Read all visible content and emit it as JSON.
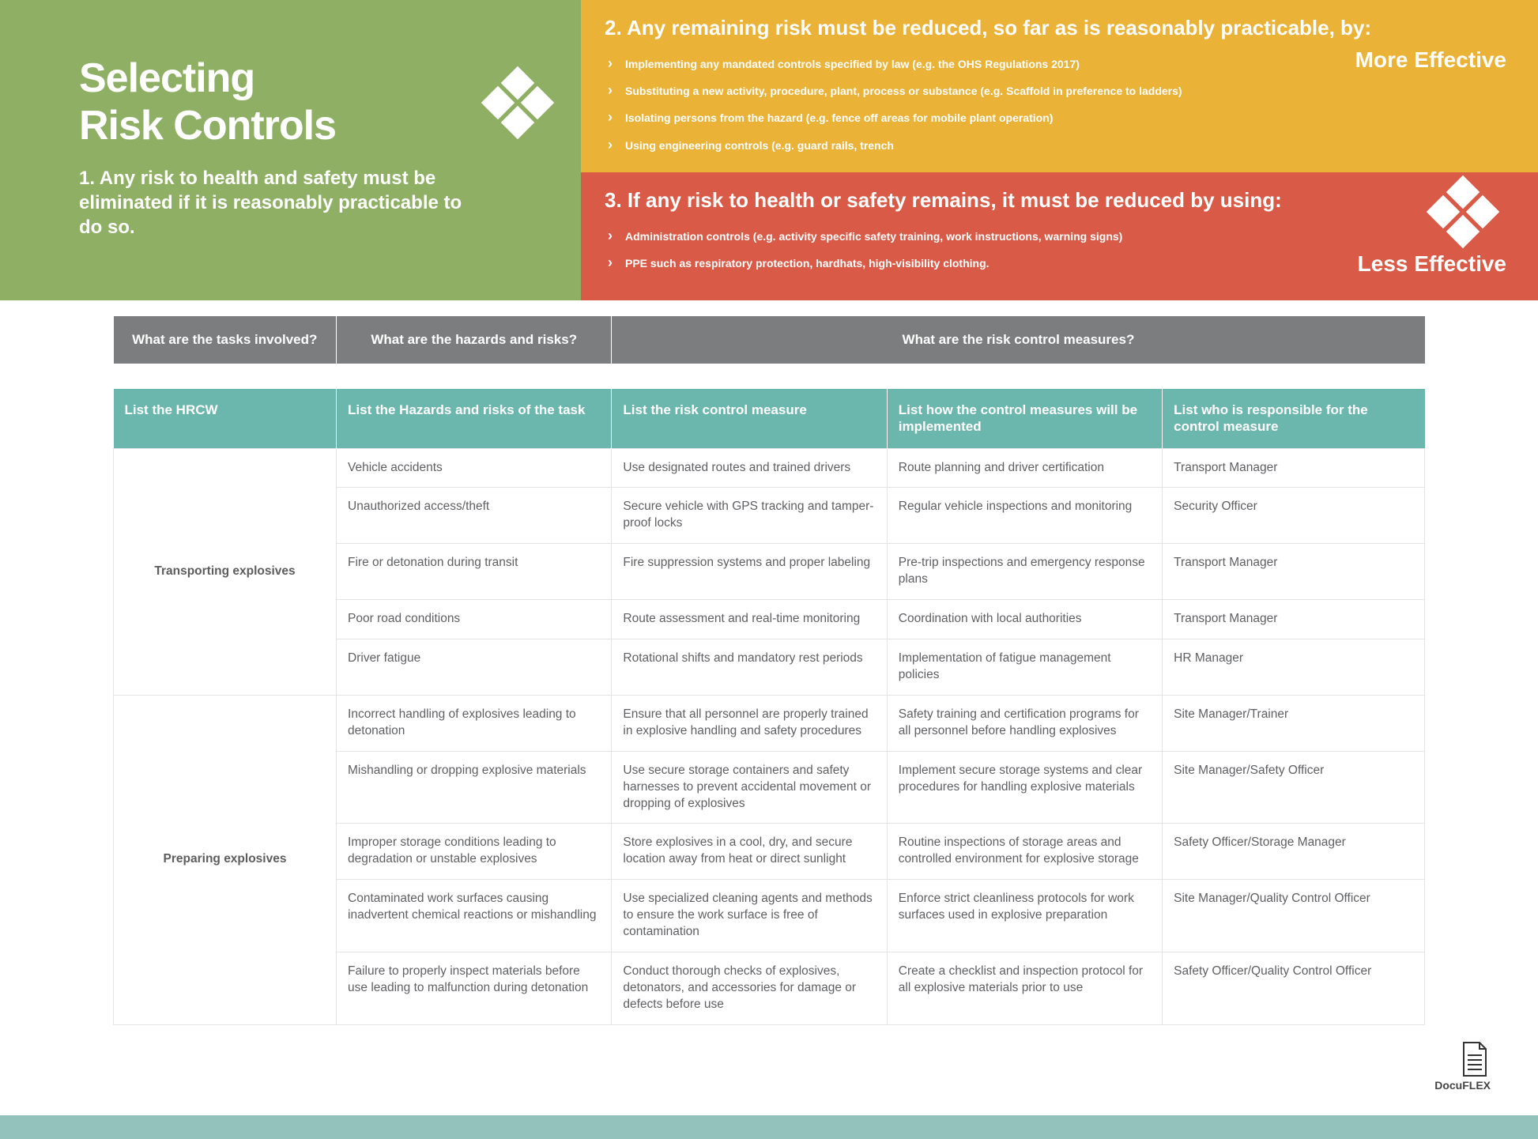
{
  "hero": {
    "title_line1": "Selecting",
    "title_line2": "Risk Controls",
    "point1": "1. Any risk to health and safety must be eliminated if it is reasonably practicable to do so.",
    "band2": {
      "title": "2. Any remaining risk must be reduced, so far as is reasonably practicable, by:",
      "items": [
        "Implementing any mandated controls specified by law (e.g. the OHS Regulations 2017)",
        "Substituting a new activity, procedure, plant, process or substance (e.g. Scaffold in preference to ladders)",
        "Isolating persons from the hazard (e.g. fence off areas for mobile plant operation)",
        "Using engineering controls (e.g. guard rails, trench"
      ],
      "label": "More Effective"
    },
    "band3": {
      "title": "3. If any risk to health or safety remains, it must be reduced by using:",
      "items": [
        "Administration controls (e.g. activity specific safety training, work instructions, warning signs)",
        "PPE such as respiratory protection, hardhats, high-visibility clothing."
      ],
      "label": "Less Effective"
    }
  },
  "colors": {
    "green": "#8fb064",
    "orange": "#eab237",
    "red": "#d95b47",
    "teal": "#6bb7ad",
    "grey": "#7c7d7e",
    "footer_teal": "#93c2bc",
    "body_text": "#5f6063",
    "border": "#e3e4e5"
  },
  "top_headers": {
    "c1": "What are the tasks involved?",
    "c2": "What are the hazards and risks?",
    "c3": "What are the risk control measures?"
  },
  "sub_headers": {
    "h1": "List the HRCW",
    "h2": "List the Hazards and risks of the task",
    "h3": "List the risk control measure",
    "h4": "List how the control measures will be implemented",
    "h5": "List who is responsible for the control measure"
  },
  "col_widths": {
    "c1": "17%",
    "c2": "21%",
    "c3": "21%",
    "c4": "21%",
    "c5": "20%"
  },
  "groups": [
    {
      "hrcw": "Transporting explosives",
      "rows": [
        {
          "hazard": "Vehicle accidents",
          "control": "Use designated routes and trained drivers",
          "impl": "Route planning and driver certification",
          "resp": "Transport Manager"
        },
        {
          "hazard": "Unauthorized access/theft",
          "control": "Secure vehicle with GPS tracking and tamper-proof locks",
          "impl": "Regular vehicle inspections and monitoring",
          "resp": "Security Officer"
        },
        {
          "hazard": "Fire or detonation during transit",
          "control": "Fire suppression systems and proper labeling",
          "impl": "Pre-trip inspections and emergency response plans",
          "resp": "Transport Manager"
        },
        {
          "hazard": "Poor road conditions",
          "control": "Route assessment and real-time monitoring",
          "impl": "Coordination with local authorities",
          "resp": "Transport Manager"
        },
        {
          "hazard": "Driver fatigue",
          "control": "Rotational shifts and mandatory rest periods",
          "impl": "Implementation of fatigue management policies",
          "resp": "HR Manager"
        }
      ]
    },
    {
      "hrcw": "Preparing explosives",
      "rows": [
        {
          "hazard": "Incorrect handling of explosives leading to detonation",
          "control": "Ensure that all personnel are properly trained in explosive handling and safety procedures",
          "impl": "Safety training and certification programs for all personnel before handling explosives",
          "resp": "Site Manager/Trainer"
        },
        {
          "hazard": "Mishandling or dropping explosive materials",
          "control": "Use secure storage containers and safety harnesses to prevent accidental movement or dropping of explosives",
          "impl": "Implement secure storage systems and clear procedures for handling explosive materials",
          "resp": "Site Manager/Safety Officer"
        },
        {
          "hazard": "Improper storage conditions leading to degradation or unstable explosives",
          "control": "Store explosives in a cool, dry, and secure location away from heat or direct sunlight",
          "impl": "Routine inspections of storage areas and controlled environment for explosive storage",
          "resp": "Safety Officer/Storage Manager"
        },
        {
          "hazard": "Contaminated work surfaces causing inadvertent chemical reactions or mishandling",
          "control": "Use specialized cleaning agents and methods to ensure the work surface is free of contamination",
          "impl": "Enforce strict cleanliness protocols for work surfaces used in explosive preparation",
          "resp": "Site Manager/Quality Control Officer"
        },
        {
          "hazard": "Failure to properly inspect materials before use leading to malfunction during detonation",
          "control": "Conduct thorough checks of explosives, detonators, and accessories for damage or defects before use",
          "impl": "Create a checklist and inspection protocol for all explosive materials prior to use",
          "resp": "Safety Officer/Quality Control Officer"
        }
      ]
    }
  ],
  "watermark": "DocuFLEX"
}
